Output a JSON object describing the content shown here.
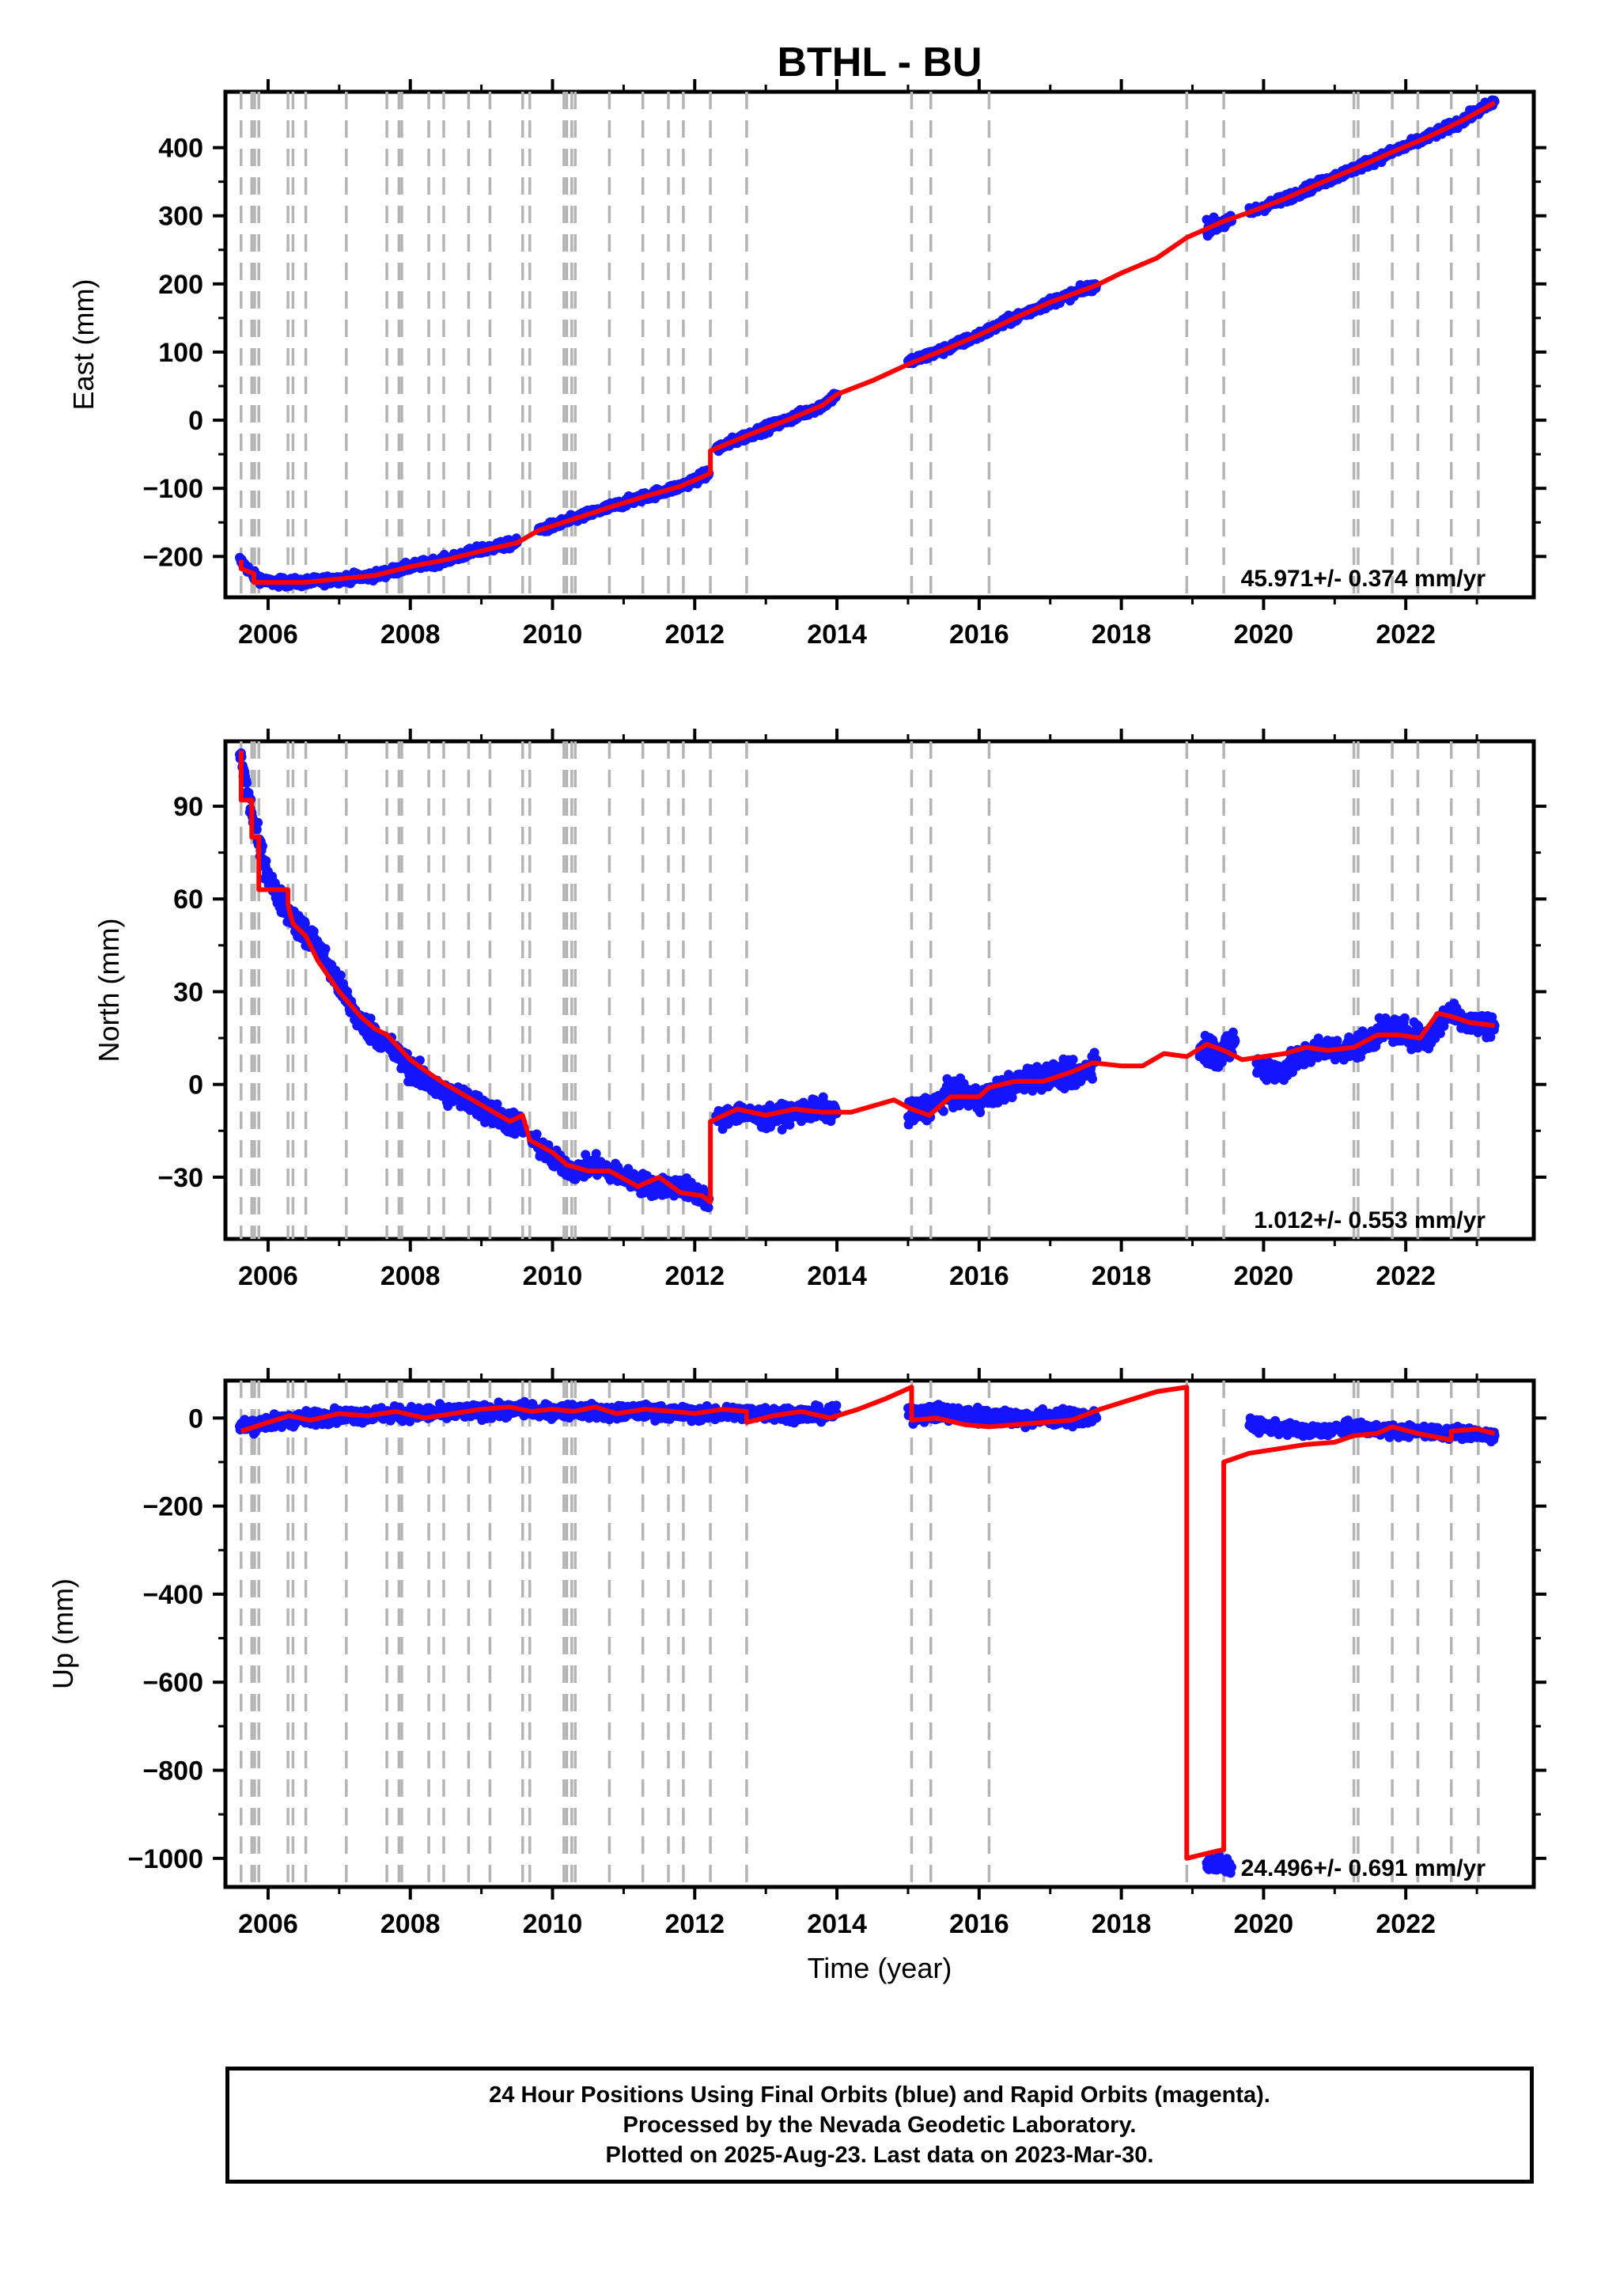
{
  "chart_data": {
    "title": "BTHL - BU",
    "xlabel": "Time (year)",
    "x_ticks": [
      "2006",
      "2008",
      "2010",
      "2012",
      "2014",
      "2016",
      "2018",
      "2020",
      "2022"
    ],
    "xlim": [
      2005.4,
      2023.8
    ],
    "step_epochs": [
      2005.62,
      2005.77,
      2005.81,
      2005.87,
      2006.28,
      2006.35,
      2006.53,
      2007.1,
      2007.67,
      2007.84,
      2007.88,
      2008.26,
      2008.47,
      2008.82,
      2009.12,
      2009.58,
      2009.68,
      2010.16,
      2010.2,
      2010.27,
      2010.32,
      2010.8,
      2011.27,
      2011.63,
      2011.84,
      2012.22,
      2012.73,
      2015.05,
      2015.32,
      2016.14,
      2018.92,
      2019.44,
      2021.27,
      2021.33,
      2021.81,
      2022.17,
      2022.64,
      2023.02
    ],
    "colors": {
      "data": "#1414ff",
      "model": "#ff0000",
      "steps": "#b4b4b4",
      "axis": "#000000"
    },
    "footer": {
      "line1": "24 Hour Positions Using Final Orbits (blue) and Rapid Orbits (magenta).",
      "line2": "Processed by the Nevada Geodetic Laboratory.",
      "line3": "Plotted on 2025-Aug-23. Last data on 2023-Mar-30."
    },
    "panels": [
      {
        "name": "east",
        "ylabel": "East (mm)",
        "ylim": [
          -260,
          482
        ],
        "y_ticks": [
          -200,
          -100,
          0,
          100,
          200,
          300,
          400
        ],
        "y_tick_labels": [
          "−200",
          "−100",
          "0",
          "100",
          "200",
          "300",
          "400"
        ],
        "rate": "45.971+/- 0.374 mm/yr",
        "data_segments": [
          {
            "x": [
              2005.6,
              2005.8,
              2006.0,
              2006.5,
              2007.0,
              2007.5,
              2008.0,
              2008.5,
              2009.0,
              2009.5
            ],
            "y": [
              -205,
              -228,
              -238,
              -238,
              -233,
              -228,
              -215,
              -205,
              -190,
              -180
            ],
            "noise": 5
          },
          {
            "x": [
              2009.8,
              2010.3,
              2010.8,
              2011.3,
              2011.8,
              2012.2
            ],
            "y": [
              -162,
              -145,
              -128,
              -112,
              -97,
              -78
            ],
            "noise": 5
          },
          {
            "x": [
              2012.3,
              2012.8,
              2013.3,
              2013.8,
              2014.0
            ],
            "y": [
              -42,
              -20,
              0,
              22,
              38
            ],
            "noise": 5
          },
          {
            "x": [
              2015.0,
              2015.5,
              2016.0,
              2016.5,
              2017.0,
              2017.65
            ],
            "y": [
              85,
              103,
              125,
              150,
              173,
              198
            ],
            "noise": 5
          },
          {
            "x": [
              2019.2,
              2019.55
            ],
            "y": [
              283,
              292
            ],
            "noise": 8
          },
          {
            "x": [
              2019.8,
              2020.3,
              2020.8,
              2021.3,
              2021.8,
              2022.3,
              2022.8,
              2023.25
            ],
            "y": [
              305,
              325,
              348,
              370,
              393,
              415,
              440,
              468
            ],
            "noise": 5
          }
        ],
        "model": {
          "x": [
            2005.62,
            2005.62,
            2005.8,
            2005.8,
            2006.5,
            2007.0,
            2007.5,
            2008.0,
            2008.5,
            2009.0,
            2009.5,
            2009.8,
            2010.3,
            2010.8,
            2011.3,
            2011.8,
            2012.22,
            2012.22,
            2012.8,
            2013.3,
            2013.8,
            2014.0,
            2014.5,
            2015.0,
            2015.5,
            2016.0,
            2016.5,
            2017.0,
            2017.65,
            2018.0,
            2018.5,
            2018.92,
            2019.44,
            2019.8,
            2020.3,
            2020.8,
            2021.3,
            2021.8,
            2022.3,
            2022.8,
            2023.25
          ],
          "y": [
            -205,
            -218,
            -225,
            -238,
            -238,
            -233,
            -228,
            -215,
            -205,
            -192,
            -180,
            -162,
            -145,
            -128,
            -112,
            -97,
            -78,
            -45,
            -20,
            0,
            22,
            38,
            58,
            82,
            103,
            125,
            150,
            173,
            198,
            216,
            238,
            268,
            292,
            305,
            325,
            348,
            370,
            393,
            415,
            440,
            466
          ]
        }
      },
      {
        "name": "north",
        "ylabel": "North (mm)",
        "ylim": [
          -50,
          111
        ],
        "y_ticks": [
          -30,
          0,
          30,
          60,
          90
        ],
        "y_tick_labels": [
          "−30",
          "0",
          "30",
          "60",
          "90"
        ],
        "rate": "1.012+/- 0.553 mm/yr",
        "data_segments": [
          {
            "x": [
              2005.6,
              2005.75,
              2005.9,
              2006.1,
              2006.4,
              2006.7,
              2007.0,
              2007.3,
              2007.6,
              2008.0,
              2008.4,
              2008.8,
              2009.2,
              2009.6
            ],
            "y": [
              108,
              90,
              75,
              62,
              52,
              45,
              32,
              20,
              15,
              5,
              -2,
              -5,
              -10,
              -14
            ],
            "noise": 3
          },
          {
            "x": [
              2009.7,
              2010.0,
              2010.3,
              2010.6,
              2011.0,
              2011.4,
              2011.8,
              2012.2
            ],
            "y": [
              -18,
              -24,
              -28,
              -26,
              -30,
              -33,
              -33,
              -37
            ],
            "noise": 2.5
          },
          {
            "x": [
              2012.3,
              2012.6,
              2013.0,
              2013.4,
              2013.8,
              2014.0
            ],
            "y": [
              -12,
              -9,
              -11,
              -9,
              -8,
              -9
            ],
            "noise": 2.5
          },
          {
            "x": [
              2015.0,
              2015.3,
              2015.6,
              2016.0,
              2016.3,
              2016.7,
              2017.0,
              2017.4,
              2017.65
            ],
            "y": [
              -10,
              -7,
              -3,
              -5,
              -2,
              2,
              3,
              3,
              8
            ],
            "noise": 3
          },
          {
            "x": [
              2019.1,
              2019.4,
              2019.6
            ],
            "y": [
              12,
              10,
              14
            ],
            "noise": 4
          },
          {
            "x": [
              2019.9,
              2020.2,
              2020.5,
              2020.8,
              2021.1,
              2021.4,
              2021.7,
              2022.0,
              2022.3,
              2022.6,
              2022.9,
              2023.25
            ],
            "y": [
              6,
              4,
              8,
              12,
              11,
              13,
              18,
              17,
              14,
              24,
              20,
              19
            ],
            "noise": 3
          }
        ],
        "model": {
          "x": [
            2005.62,
            2005.62,
            2005.77,
            2005.77,
            2005.87,
            2005.87,
            2006.28,
            2006.28,
            2006.35,
            2006.53,
            2006.7,
            2007.0,
            2007.3,
            2007.5,
            2007.67,
            2008.0,
            2008.3,
            2008.5,
            2008.8,
            2009.1,
            2009.4,
            2009.58,
            2009.68,
            2010.0,
            2010.2,
            2010.5,
            2010.8,
            2011.2,
            2011.5,
            2011.8,
            2012.1,
            2012.22,
            2012.22,
            2012.6,
            2013.0,
            2013.4,
            2013.8,
            2014.2,
            2014.5,
            2014.8,
            2015.05,
            2015.3,
            2015.6,
            2016.0,
            2016.14,
            2016.5,
            2016.9,
            2017.3,
            2017.6,
            2018.0,
            2018.3,
            2018.6,
            2018.92,
            2019.2,
            2019.44,
            2019.7,
            2020.0,
            2020.3,
            2020.6,
            2020.9,
            2021.27,
            2021.6,
            2021.9,
            2022.2,
            2022.45,
            2022.64,
            2022.9,
            2023.25
          ],
          "y": [
            108,
            92,
            92,
            80,
            80,
            63,
            63,
            58,
            52,
            48,
            40,
            30,
            22,
            18,
            16,
            8,
            3,
            0,
            -4,
            -8,
            -12,
            -10,
            -18,
            -22,
            -26,
            -28,
            -28,
            -33,
            -30,
            -35,
            -36,
            -38,
            -12,
            -8,
            -10,
            -8,
            -9,
            -9,
            -7,
            -5,
            -8,
            -10,
            -4,
            -4,
            -1,
            1,
            1,
            4,
            7,
            6,
            6,
            10,
            9,
            13,
            11,
            8,
            9,
            10,
            12,
            11,
            12,
            16,
            16,
            15,
            23,
            22,
            20,
            19
          ]
        }
      },
      {
        "name": "up",
        "ylabel": "Up (mm)",
        "ylim": [
          -1065,
          85
        ],
        "y_ticks": [
          -1000,
          -800,
          -600,
          -400,
          -200,
          0
        ],
        "y_tick_labels": [
          "−1000",
          "−800",
          "−600",
          "−400",
          "−200",
          "0"
        ],
        "rate": "24.496+/- 0.691 mm/yr",
        "data_segments": [
          {
            "x": [
              2005.6,
              2006.0,
              2006.5,
              2007.0,
              2007.5,
              2008.0,
              2008.5,
              2009.0,
              2009.5,
              2009.75
            ],
            "y": [
              -20,
              -10,
              0,
              5,
              8,
              10,
              12,
              15,
              18,
              20
            ],
            "noise": 12
          },
          {
            "x": [
              2009.8,
              2010.3,
              2010.8,
              2011.3,
              2011.8,
              2012.3,
              2012.8,
              2013.3,
              2013.8,
              2014.0
            ],
            "y": [
              15,
              18,
              12,
              15,
              10,
              10,
              12,
              10,
              8,
              10
            ],
            "noise": 12
          },
          {
            "x": [
              2015.0,
              2015.5,
              2016.0,
              2016.5,
              2017.0,
              2017.65
            ],
            "y": [
              10,
              12,
              5,
              0,
              2,
              0
            ],
            "noise": 14
          },
          {
            "x": [
              2019.2,
              2019.4,
              2019.55
            ],
            "y": [
              -1015,
              -1010,
              -1020
            ],
            "noise": 15
          },
          {
            "x": [
              2019.8,
              2020.3,
              2020.8,
              2021.3,
              2021.8,
              2022.3,
              2022.8,
              2023.25
            ],
            "y": [
              -15,
              -25,
              -30,
              -20,
              -30,
              -30,
              -35,
              -40
            ],
            "noise": 10
          }
        ],
        "model": {
          "x": [
            2005.62,
            2006.0,
            2006.3,
            2006.6,
            2007.0,
            2007.4,
            2007.8,
            2008.2,
            2008.6,
            2009.0,
            2009.4,
            2009.7,
            2010.0,
            2010.3,
            2010.6,
            2010.9,
            2011.3,
            2011.7,
            2012.0,
            2012.4,
            2012.73,
            2012.73,
            2013.1,
            2013.5,
            2013.9,
            2014.3,
            2014.7,
            2015.05,
            2015.05,
            2015.4,
            2015.8,
            2016.14,
            2016.5,
            2016.9,
            2017.3,
            2017.7,
            2018.1,
            2018.5,
            2018.92,
            2018.92,
            2019.3,
            2019.44,
            2019.44,
            2019.8,
            2020.2,
            2020.6,
            2021.0,
            2021.27,
            2021.6,
            2021.81,
            2022.17,
            2022.64,
            2022.64,
            2023.0,
            2023.25
          ],
          "y": [
            -30,
            -10,
            5,
            -5,
            10,
            5,
            15,
            0,
            10,
            20,
            25,
            15,
            20,
            15,
            25,
            10,
            20,
            15,
            10,
            20,
            15,
            -10,
            5,
            15,
            0,
            20,
            45,
            70,
            -5,
            0,
            -15,
            -20,
            -15,
            -10,
            -5,
            20,
            40,
            60,
            70,
            -1000,
            -985,
            -980,
            -100,
            -80,
            -70,
            -60,
            -55,
            -40,
            -35,
            -20,
            -35,
            -50,
            -30,
            -25,
            -35
          ]
        }
      }
    ]
  }
}
